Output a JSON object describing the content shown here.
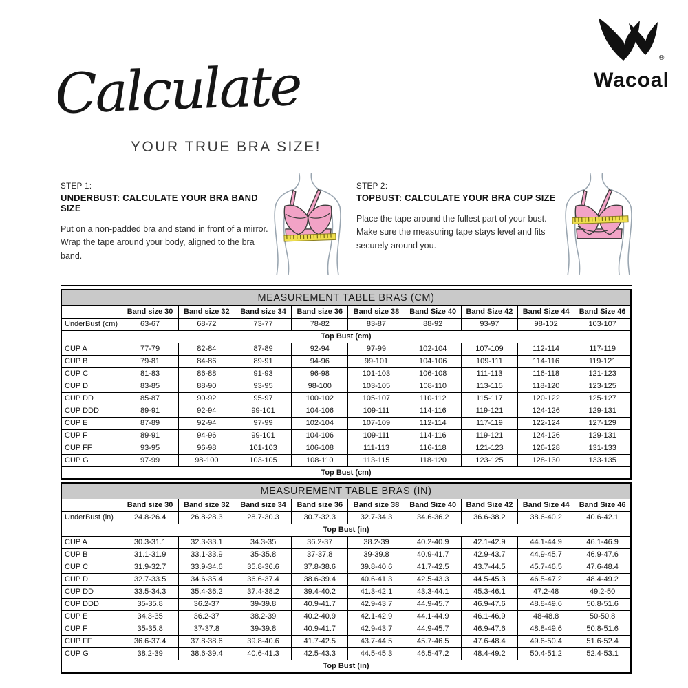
{
  "brand": {
    "name": "Wacoal",
    "registered_mark": "®"
  },
  "header": {
    "script_title": "Calculate",
    "subtitle": "YOUR TRUE BRA SIZE!"
  },
  "steps": [
    {
      "label": "STEP 1:",
      "heading": "UNDERBUST: CALCULATE YOUR BRA BAND SIZE",
      "body": "Put on a non-padded bra and stand in front of a mirror. Wrap the tape around your body, aligned to the bra band.",
      "illustration": "bra-with-measuring-tape-at-band"
    },
    {
      "label": "STEP 2:",
      "heading": "TOPBUST: CALCULATE YOUR BRA CUP SIZE",
      "body": "Place the tape around the fullest part of your bust. Make sure the measuring tape stays level and fits securely around you.",
      "illustration": "bra-with-measuring-tape-at-bust"
    }
  ],
  "tables": [
    {
      "title": "MEASUREMENT TABLE BRAS (CM)",
      "columns": [
        "",
        "Band size 30",
        "Band size 32",
        "Band size 34",
        "Band size 36",
        "Band size 38",
        "Band Size 40",
        "Band Size 42",
        "Band Size 44",
        "Band Size 46"
      ],
      "underbust": {
        "label": "UnderBust (cm)",
        "values": [
          "63-67",
          "68-72",
          "73-77",
          "78-82",
          "83-87",
          "88-92",
          "93-97",
          "98-102",
          "103-107"
        ]
      },
      "top_bust_label": "Top Bust (cm)",
      "cup_rows": [
        {
          "label": "CUP A",
          "values": [
            "77-79",
            "82-84",
            "87-89",
            "92-94",
            "97-99",
            "102-104",
            "107-109",
            "112-114",
            "117-119"
          ]
        },
        {
          "label": "CUP B",
          "values": [
            "79-81",
            "84-86",
            "89-91",
            "94-96",
            "99-101",
            "104-106",
            "109-111",
            "114-116",
            "119-121"
          ]
        },
        {
          "label": "CUP C",
          "values": [
            "81-83",
            "86-88",
            "91-93",
            "96-98",
            "101-103",
            "106-108",
            "111-113",
            "116-118",
            "121-123"
          ]
        },
        {
          "label": "CUP D",
          "values": [
            "83-85",
            "88-90",
            "93-95",
            "98-100",
            "103-105",
            "108-110",
            "113-115",
            "118-120",
            "123-125"
          ]
        },
        {
          "label": "CUP DD",
          "values": [
            "85-87",
            "90-92",
            "95-97",
            "100-102",
            "105-107",
            "110-112",
            "115-117",
            "120-122",
            "125-127"
          ]
        },
        {
          "label": "CUP DDD",
          "values": [
            "89-91",
            "92-94",
            "99-101",
            "104-106",
            "109-111",
            "114-116",
            "119-121",
            "124-126",
            "129-131"
          ]
        },
        {
          "label": "CUP E",
          "values": [
            "87-89",
            "92-94",
            "97-99",
            "102-104",
            "107-109",
            "112-114",
            "117-119",
            "122-124",
            "127-129"
          ]
        },
        {
          "label": "CUP F",
          "values": [
            "89-91",
            "94-96",
            "99-101",
            "104-106",
            "109-111",
            "114-116",
            "119-121",
            "124-126",
            "129-131"
          ]
        },
        {
          "label": "CUP FF",
          "values": [
            "93-95",
            "96-98",
            "101-103",
            "106-108",
            "111-113",
            "116-118",
            "121-123",
            "126-128",
            "131-133"
          ]
        },
        {
          "label": "CUP G",
          "values": [
            "97-99",
            "98-100",
            "103-105",
            "108-110",
            "113-115",
            "118-120",
            "123-125",
            "128-130",
            "133-135"
          ]
        }
      ]
    },
    {
      "title": "MEASUREMENT TABLE BRAS (IN)",
      "columns": [
        "",
        "Band size 30",
        "Band size 32",
        "Band size 34",
        "Band size 36",
        "Band size 38",
        "Band Size 40",
        "Band Size 42",
        "Band Size 44",
        "Band Size 46"
      ],
      "underbust": {
        "label": "UnderBust (in)",
        "values": [
          "24.8-26.4",
          "26.8-28.3",
          "28.7-30.3",
          "30.7-32.3",
          "32.7-34.3",
          "34.6-36.2",
          "36.6-38.2",
          "38.6-40.2",
          "40.6-42.1"
        ]
      },
      "top_bust_label": "Top Bust (in)",
      "cup_rows": [
        {
          "label": "CUP A",
          "values": [
            "30.3-31.1",
            "32.3-33.1",
            "34.3-35",
            "36.2-37",
            "38.2-39",
            "40.2-40.9",
            "42.1-42.9",
            "44.1-44.9",
            "46.1-46.9"
          ]
        },
        {
          "label": "CUP B",
          "values": [
            "31.1-31.9",
            "33.1-33.9",
            "35-35.8",
            "37-37.8",
            "39-39.8",
            "40.9-41.7",
            "42.9-43.7",
            "44.9-45.7",
            "46.9-47.6"
          ]
        },
        {
          "label": "CUP C",
          "values": [
            "31.9-32.7",
            "33.9-34.6",
            "35.8-36.6",
            "37.8-38.6",
            "39.8-40.6",
            "41.7-42.5",
            "43.7-44.5",
            "45.7-46.5",
            "47.6-48.4"
          ]
        },
        {
          "label": "CUP D",
          "values": [
            "32.7-33.5",
            "34.6-35.4",
            "36.6-37.4",
            "38.6-39.4",
            "40.6-41.3",
            "42.5-43.3",
            "44.5-45.3",
            "46.5-47.2",
            "48.4-49.2"
          ]
        },
        {
          "label": "CUP DD",
          "values": [
            "33.5-34.3",
            "35.4-36.2",
            "37.4-38.2",
            "39.4-40.2",
            "41.3-42.1",
            "43.3-44.1",
            "45.3-46.1",
            "47.2-48",
            "49.2-50"
          ]
        },
        {
          "label": "CUP DDD",
          "values": [
            "35-35.8",
            "36.2-37",
            "39-39.8",
            "40.9-41.7",
            "42.9-43.7",
            "44.9-45.7",
            "46.9-47.6",
            "48.8-49.6",
            "50.8-51.6"
          ]
        },
        {
          "label": "CUP E",
          "values": [
            "34.3-35",
            "36.2-37",
            "38.2-39",
            "40.2-40.9",
            "42.1-42.9",
            "44.1-44.9",
            "46.1-46.9",
            "48-48.8",
            "50-50.8"
          ]
        },
        {
          "label": "CUP F",
          "values": [
            "35-35.8",
            "37-37.8",
            "39-39.8",
            "40.9-41.7",
            "42.9-43.7",
            "44.9-45.7",
            "46.9-47.6",
            "48.8-49.6",
            "50.8-51.6"
          ]
        },
        {
          "label": "CUP FF",
          "values": [
            "36.6-37.4",
            "37.8-38.6",
            "39.8-40.6",
            "41.7-42.5",
            "43.7-44.5",
            "45.7-46.5",
            "47.6-48.4",
            "49.6-50.4",
            "51.6-52.4"
          ]
        },
        {
          "label": "CUP G",
          "values": [
            "38.2-39",
            "38.6-39.4",
            "40.6-41.3",
            "42.5-43.3",
            "44.5-45.3",
            "46.5-47.2",
            "48.4-49.2",
            "50.4-51.2",
            "52.4-53.1"
          ]
        }
      ]
    }
  ],
  "colors": {
    "pink": "#F2A3C6",
    "tape-yellow": "#EFDF4E",
    "tape-tick": "#6F6414",
    "title-bar": "#C9C9C9",
    "figure-line": "#9AA6B1",
    "text": "#1F1F1F"
  }
}
